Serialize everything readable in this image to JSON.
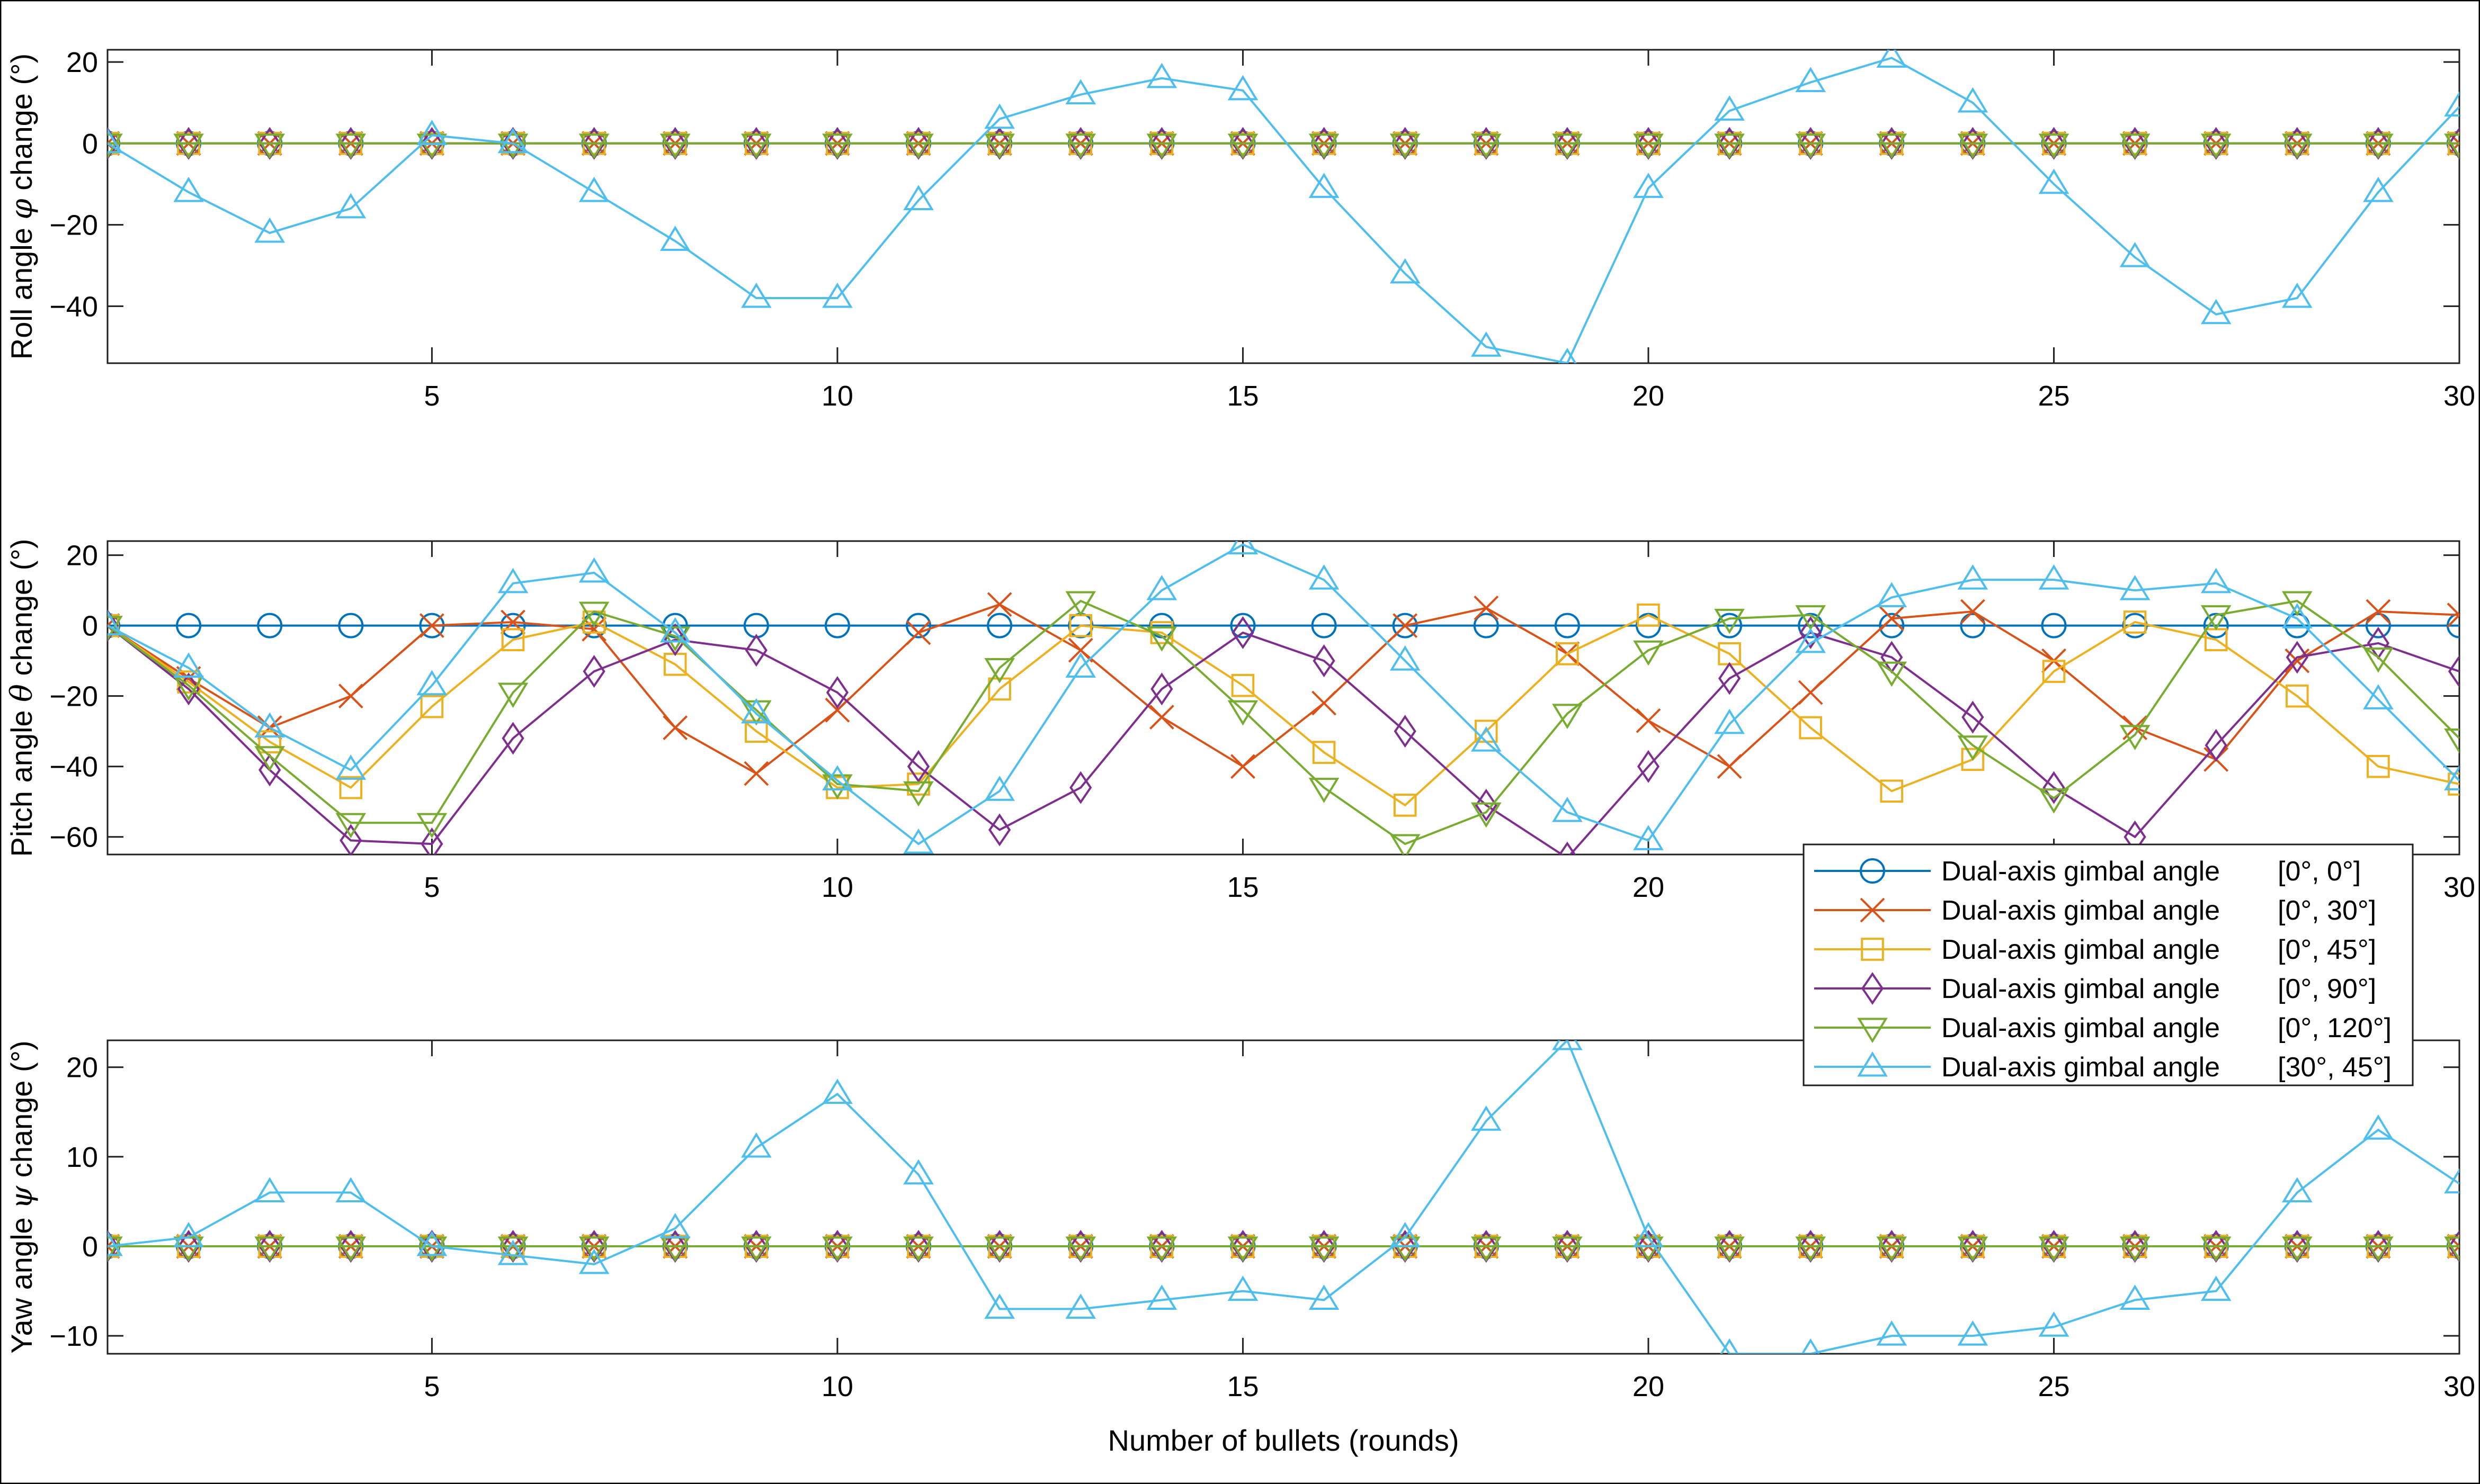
{
  "chart_data": {
    "type": "line",
    "x": [
      1,
      2,
      3,
      4,
      5,
      6,
      7,
      8,
      9,
      10,
      11,
      12,
      13,
      14,
      15,
      16,
      17,
      18,
      19,
      20,
      21,
      22,
      23,
      24,
      25,
      26,
      27,
      28,
      29,
      30
    ],
    "xlabel": "Number of bullets (rounds)",
    "xticks": [
      5,
      10,
      15,
      20,
      25,
      30
    ],
    "xlim": [
      1,
      30
    ],
    "legend": {
      "placement": "lower-right of middle panel",
      "entries": [
        {
          "prefix": "Dual-axis gimbal angle",
          "value": "[0°,  0°]",
          "color": "#0072BD",
          "marker": "circle"
        },
        {
          "prefix": "Dual-axis gimbal angle",
          "value": "[0°,  30°]",
          "color": "#D95319",
          "marker": "x"
        },
        {
          "prefix": "Dual-axis gimbal angle",
          "value": "[0°,  45°]",
          "color": "#EDB120",
          "marker": "square"
        },
        {
          "prefix": "Dual-axis gimbal angle",
          "value": "[0°,  90°]",
          "color": "#7E2F8E",
          "marker": "diamond"
        },
        {
          "prefix": "Dual-axis gimbal angle",
          "value": "[0°,  120°]",
          "color": "#77AC30",
          "marker": "triangle-down"
        },
        {
          "prefix": "Dual-axis gimbal angle",
          "value": "[30°,  45°]",
          "color": "#4DBEEE",
          "marker": "triangle-up"
        }
      ]
    },
    "panels": [
      {
        "id": "roll",
        "ylabel_prefix": "Roll angle",
        "ylabel_symbol": "φ",
        "ylabel_suffix": "change (°)",
        "ylim": [
          -54,
          23
        ],
        "yticks": [
          -40,
          -20,
          0,
          20
        ],
        "ytick_labels": [
          "−40",
          "−20",
          "0",
          "20"
        ],
        "show_x_ticks": true,
        "series": [
          {
            "name": "[0°, 0°]",
            "values": [
              0,
              0,
              0,
              0,
              0,
              0,
              0,
              0,
              0,
              0,
              0,
              0,
              0,
              0,
              0,
              0,
              0,
              0,
              0,
              0,
              0,
              0,
              0,
              0,
              0,
              0,
              0,
              0,
              0,
              0
            ]
          },
          {
            "name": "[0°, 30°]",
            "values": [
              0,
              0,
              0,
              0,
              0,
              0,
              0,
              0,
              0,
              0,
              0,
              0,
              0,
              0,
              0,
              0,
              0,
              0,
              0,
              0,
              0,
              0,
              0,
              0,
              0,
              0,
              0,
              0,
              0,
              0
            ]
          },
          {
            "name": "[0°, 45°]",
            "values": [
              0,
              0,
              0,
              0,
              0,
              0,
              0,
              0,
              0,
              0,
              0,
              0,
              0,
              0,
              0,
              0,
              0,
              0,
              0,
              0,
              0,
              0,
              0,
              0,
              0,
              0,
              0,
              0,
              0,
              0
            ]
          },
          {
            "name": "[0°, 90°]",
            "values": [
              0,
              0,
              0,
              0,
              0,
              0,
              0,
              0,
              0,
              0,
              0,
              0,
              0,
              0,
              0,
              0,
              0,
              0,
              0,
              0,
              0,
              0,
              0,
              0,
              0,
              0,
              0,
              0,
              0,
              0
            ]
          },
          {
            "name": "[0°, 120°]",
            "values": [
              0,
              0,
              0,
              0,
              0,
              0,
              0,
              0,
              0,
              0,
              0,
              0,
              0,
              0,
              0,
              0,
              0,
              0,
              0,
              0,
              0,
              0,
              0,
              0,
              0,
              0,
              0,
              0,
              0,
              0
            ]
          },
          {
            "name": "[30°, 45°]",
            "values": [
              0,
              -12,
              -22,
              -16,
              2,
              0,
              -12,
              -24,
              -38,
              -38,
              -14,
              6,
              12,
              16,
              13,
              -11,
              -32,
              -50,
              -54,
              -11,
              8,
              15,
              21,
              10,
              -10,
              -28,
              -42,
              -38,
              -12,
              9
            ]
          }
        ]
      },
      {
        "id": "pitch",
        "ylabel_prefix": "Pitch angle",
        "ylabel_symbol": "θ",
        "ylabel_suffix": "change (°)",
        "ylim": [
          -65,
          24
        ],
        "yticks": [
          -60,
          -40,
          -20,
          0,
          20
        ],
        "ytick_labels": [
          "−60",
          "−40",
          "−20",
          "0",
          "20"
        ],
        "show_x_ticks": true,
        "series": [
          {
            "name": "[0°, 0°]",
            "values": [
              0,
              0,
              0,
              0,
              0,
              0,
              0,
              0,
              0,
              0,
              0,
              0,
              0,
              0,
              0,
              0,
              0,
              0,
              0,
              0,
              0,
              0,
              0,
              0,
              0,
              0,
              0,
              0,
              0,
              0
            ]
          },
          {
            "name": "[0°, 30°]",
            "values": [
              0,
              -15,
              -29,
              -20,
              0,
              1,
              -1,
              -29,
              -42,
              -24,
              -2,
              6,
              -7,
              -26,
              -40,
              -22,
              0,
              5,
              -8,
              -27,
              -40,
              -19,
              2,
              4,
              -10,
              -29,
              -38,
              -10,
              4,
              3
            ]
          },
          {
            "name": "[0°, 45°]",
            "values": [
              0,
              -16,
              -33,
              -46,
              -23,
              -4,
              1,
              -11,
              -30,
              -46,
              -45,
              -18,
              0,
              -2,
              -17,
              -36,
              -51,
              -30,
              -8,
              3,
              -8,
              -29,
              -47,
              -38,
              -13,
              1,
              -4,
              -20,
              -40,
              -45
            ]
          },
          {
            "name": "[0°, 90°]",
            "values": [
              0,
              -18,
              -41,
              -61,
              -62,
              -32,
              -13,
              -4,
              -7,
              -19,
              -40,
              -58,
              -46,
              -18,
              -2,
              -10,
              -30,
              -51,
              -66,
              -40,
              -15,
              -2,
              -9,
              -26,
              -46,
              -60,
              -34,
              -9,
              -5,
              -13
            ]
          },
          {
            "name": "[0°, 120°]",
            "values": [
              0,
              -17,
              -37,
              -56,
              -56,
              -19,
              4,
              -3,
              -24,
              -45,
              -47,
              -12,
              7,
              -3,
              -24,
              -46,
              -62,
              -53,
              -25,
              -7,
              2,
              3,
              -13,
              -34,
              -49,
              -31,
              3,
              7,
              -9,
              -32
            ]
          },
          {
            "name": "[30°, 45°]",
            "values": [
              0,
              -12,
              -29,
              -41,
              -17,
              12,
              15,
              -2,
              -25,
              -44,
              -62,
              -47,
              -12,
              10,
              23,
              13,
              -10,
              -33,
              -53,
              -61,
              -28,
              -5,
              8,
              13,
              13,
              10,
              12,
              2,
              -21,
              -44
            ]
          }
        ]
      },
      {
        "id": "yaw",
        "ylabel_prefix": "Yaw angle",
        "ylabel_symbol": "ψ",
        "ylabel_suffix": "change (°)",
        "ylim": [
          -12,
          23
        ],
        "yticks": [
          -10,
          0,
          10,
          20
        ],
        "ytick_labels": [
          "−10",
          "0",
          "10",
          "20"
        ],
        "show_x_ticks": true,
        "series": [
          {
            "name": "[0°, 0°]",
            "values": [
              0,
              0,
              0,
              0,
              0,
              0,
              0,
              0,
              0,
              0,
              0,
              0,
              0,
              0,
              0,
              0,
              0,
              0,
              0,
              0,
              0,
              0,
              0,
              0,
              0,
              0,
              0,
              0,
              0,
              0
            ]
          },
          {
            "name": "[0°, 30°]",
            "values": [
              0,
              0,
              0,
              0,
              0,
              0,
              0,
              0,
              0,
              0,
              0,
              0,
              0,
              0,
              0,
              0,
              0,
              0,
              0,
              0,
              0,
              0,
              0,
              0,
              0,
              0,
              0,
              0,
              0,
              0
            ]
          },
          {
            "name": "[0°, 45°]",
            "values": [
              0,
              0,
              0,
              0,
              0,
              0,
              0,
              0,
              0,
              0,
              0,
              0,
              0,
              0,
              0,
              0,
              0,
              0,
              0,
              0,
              0,
              0,
              0,
              0,
              0,
              0,
              0,
              0,
              0,
              0
            ]
          },
          {
            "name": "[0°, 90°]",
            "values": [
              0,
              0,
              0,
              0,
              0,
              0,
              0,
              0,
              0,
              0,
              0,
              0,
              0,
              0,
              0,
              0,
              0,
              0,
              0,
              0,
              0,
              0,
              0,
              0,
              0,
              0,
              0,
              0,
              0,
              0
            ]
          },
          {
            "name": "[0°, 120°]",
            "values": [
              0,
              0,
              0,
              0,
              0,
              0,
              0,
              0,
              0,
              0,
              0,
              0,
              0,
              0,
              0,
              0,
              0,
              0,
              0,
              0,
              0,
              0,
              0,
              0,
              0,
              0,
              0,
              0,
              0,
              0
            ]
          },
          {
            "name": "[30°, 45°]",
            "values": [
              0,
              1,
              6,
              6,
              0,
              -1,
              -2,
              2,
              11,
              17,
              8,
              -7,
              -7,
              -6,
              -5,
              -6,
              1,
              14,
              23,
              1,
              -12,
              -12,
              -10,
              -10,
              -9,
              -6,
              -5,
              6,
              13,
              7
            ]
          }
        ]
      }
    ]
  }
}
